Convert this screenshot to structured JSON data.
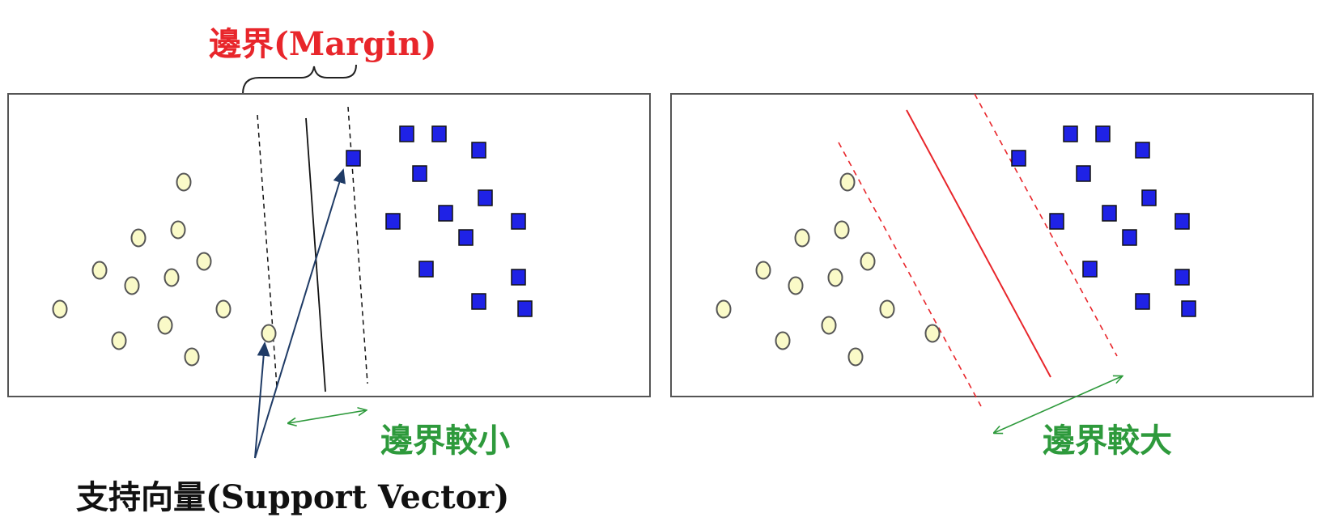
{
  "labels": {
    "margin": "邊界(Margin)",
    "smaller_margin": "邊界較小",
    "larger_margin": "邊界較大",
    "support_vector": "支持向量(Support Vector)"
  },
  "colors": {
    "circle_fill": "#fafac8",
    "square_fill": "#1f22e6",
    "panel_border": "#555555",
    "red": "#e8262b",
    "green": "#2e9a3c",
    "arrow_navy": "#1f3b66"
  },
  "panels": [
    {
      "name": "small-margin"
    },
    {
      "name": "large-margin"
    }
  ]
}
